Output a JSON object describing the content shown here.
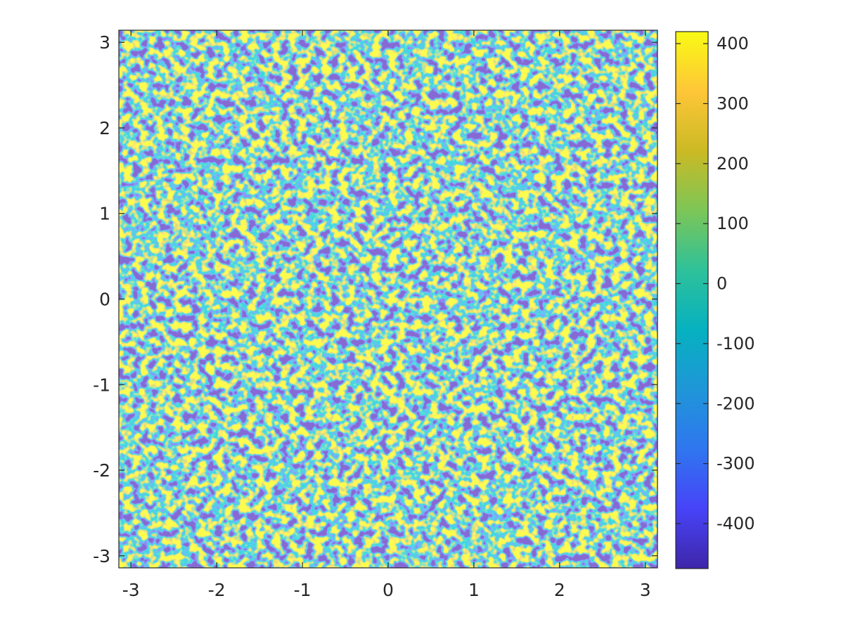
{
  "chart_data": [
    {
      "type": "heatmap",
      "title": "",
      "xlabel": "",
      "ylabel": "",
      "xlim": [
        -3.14159,
        3.14159
      ],
      "ylim": [
        -3.14159,
        3.14159
      ],
      "x_ticks": [
        -3,
        -2,
        -1,
        0,
        1,
        2,
        3
      ],
      "x_tick_labels": [
        "-3",
        "-2",
        "-1",
        "0",
        "1",
        "2",
        "3"
      ],
      "y_ticks": [
        3,
        2,
        1,
        0,
        -1,
        -2,
        -3
      ],
      "y_tick_labels": [
        "3",
        "2",
        "1",
        "0",
        "-1",
        "-2",
        "-3"
      ],
      "grid": false,
      "colormap": "parula",
      "field_description": "random band-limited field, mostly near 0 with scattered extrema",
      "colorbar": {
        "location": "right",
        "clim": [
          -475,
          420
        ],
        "ticks": [
          400,
          300,
          200,
          100,
          0,
          -100,
          -200,
          -300,
          -400
        ],
        "tick_labels": [
          "400",
          "300",
          "200",
          "100",
          "0",
          "-100",
          "-200",
          "-300",
          "-400"
        ]
      },
      "colormap_stops": [
        "#3e26a8",
        "#4743f8",
        "#2f76ef",
        "#1f96d8",
        "#06b1c0",
        "#2ec19a",
        "#7cc657",
        "#cbba24",
        "#fec638",
        "#f9fa14"
      ]
    }
  ]
}
